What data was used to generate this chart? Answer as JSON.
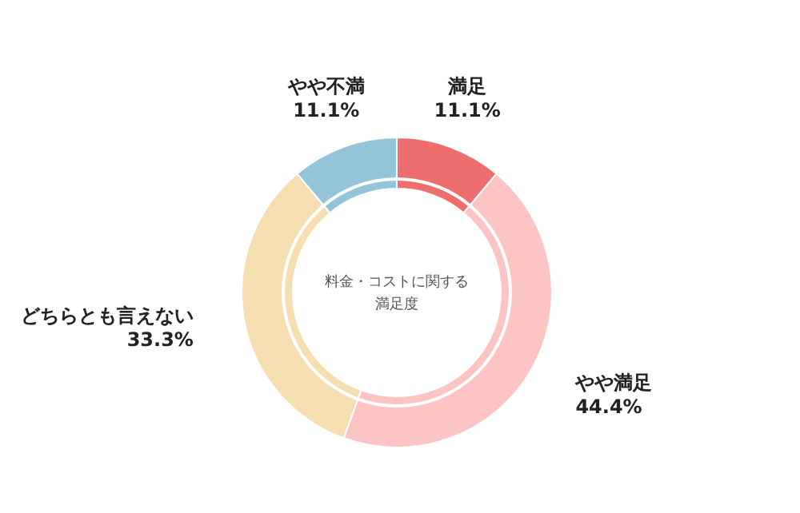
{
  "chart_data": {
    "type": "donut",
    "title": "料金・コストに関する満足度",
    "categories": [
      "満足",
      "やや満足",
      "どちらとも言えない",
      "やや不満"
    ],
    "values": [
      11.1,
      44.4,
      33.3,
      11.1
    ],
    "colors": [
      "#ee6e6e",
      "#fdc4c4",
      "#f5dfb0",
      "#93c4d8"
    ],
    "value_labels": [
      "11.1%",
      "44.4%",
      "33.3%",
      "11.1%"
    ]
  }
}
